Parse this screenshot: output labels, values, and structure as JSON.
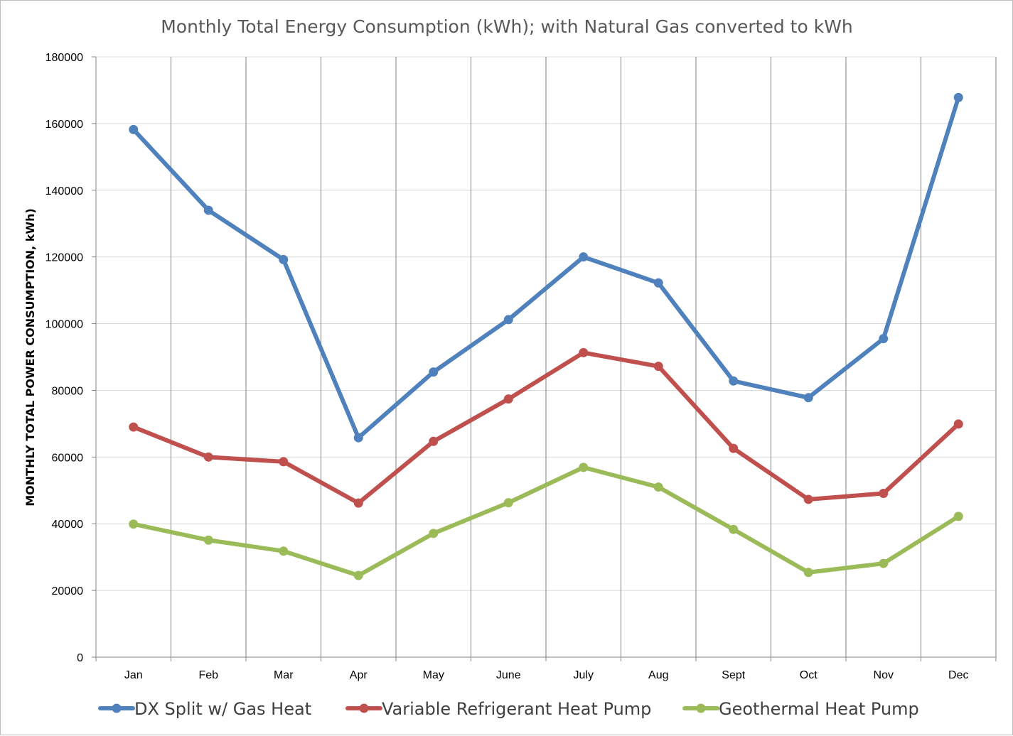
{
  "chart_data": {
    "type": "line",
    "title": "Monthly Total Energy Consumption (kWh); with Natural Gas converted to kWh",
    "xlabel": "",
    "ylabel": "MONTHLY TOTAL POWER CONSUMPTION, kWh)",
    "ylim": [
      0,
      180000
    ],
    "yticks": [
      0,
      20000,
      40000,
      60000,
      80000,
      100000,
      120000,
      140000,
      160000,
      180000
    ],
    "categories": [
      "Jan",
      "Feb",
      "Mar",
      "Apr",
      "May",
      "June",
      "July",
      "Aug",
      "Sept",
      "Oct",
      "Nov",
      "Dec"
    ],
    "grid": {
      "horizontal": true,
      "vertical": true
    },
    "legend_position": "bottom",
    "series": [
      {
        "name": "DX Split w/ Gas Heat",
        "color": "#4F81BD",
        "values": [
          158200,
          134000,
          119200,
          65800,
          85500,
          101200,
          120000,
          112200,
          82800,
          77800,
          95500,
          167800
        ]
      },
      {
        "name": "Variable Refrigerant Heat Pump",
        "color": "#C0504D",
        "values": [
          69000,
          60000,
          58600,
          46200,
          64700,
          77400,
          91300,
          87200,
          62600,
          47300,
          49100,
          69900
        ]
      },
      {
        "name": "Geothermal Heat Pump",
        "color": "#9BBB59",
        "values": [
          39900,
          35100,
          31800,
          24500,
          37100,
          46300,
          56900,
          51000,
          38300,
          25400,
          28100,
          42200
        ]
      }
    ]
  }
}
